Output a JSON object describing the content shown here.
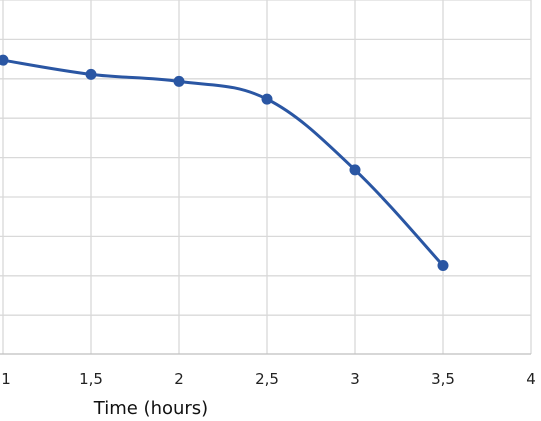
{
  "chart_data": {
    "type": "line",
    "title": "",
    "xlabel": "Time (hours)",
    "ylabel": "",
    "xlim": [
      1,
      4
    ],
    "x_ticks": [
      1,
      1.5,
      2,
      2.5,
      3,
      3.5,
      4
    ],
    "x_tick_labels": [
      "1",
      "1,5",
      "2",
      "2,5",
      "3",
      "3,5",
      "4"
    ],
    "y_gridlines": 9,
    "grid": true,
    "legend": "none",
    "line_color": "#2a56a3",
    "series": [
      {
        "x": [
          1,
          1.5,
          2,
          2.5,
          3,
          3.5
        ],
        "y": [
          0.83,
          0.79,
          0.77,
          0.72,
          0.52,
          0.25
        ],
        "smooth": true
      }
    ]
  }
}
